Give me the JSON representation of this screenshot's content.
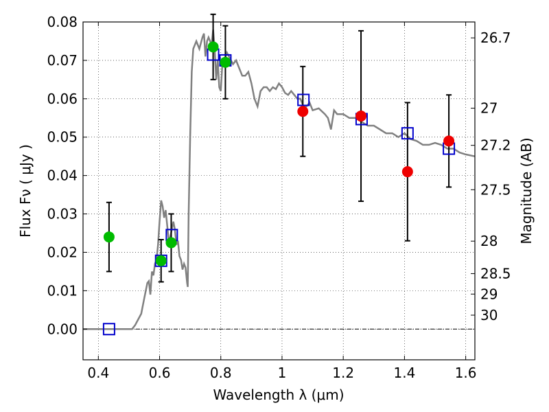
{
  "chart_data": {
    "type": "scatter",
    "xlabel": "Wavelength  λ (μm)",
    "ylabel": "Flux  Fν  ( μJy )",
    "y2label": "Magnitude (AB)",
    "xlim": [
      0.35,
      1.63
    ],
    "ylim": [
      -0.008,
      0.08
    ],
    "grid": true,
    "xticks": [
      {
        "v": 0.4,
        "label": "0.4"
      },
      {
        "v": 0.6,
        "label": "0.6"
      },
      {
        "v": 0.8,
        "label": "0.8"
      },
      {
        "v": 1.0,
        "label": "1"
      },
      {
        "v": 1.2,
        "label": "1.2"
      },
      {
        "v": 1.4,
        "label": "1.4"
      },
      {
        "v": 1.6,
        "label": "1.6"
      }
    ],
    "yticks": [
      {
        "v": 0.0,
        "label": "0.00"
      },
      {
        "v": 0.01,
        "label": "0.01"
      },
      {
        "v": 0.02,
        "label": "0.02"
      },
      {
        "v": 0.03,
        "label": "0.03"
      },
      {
        "v": 0.04,
        "label": "0.04"
      },
      {
        "v": 0.05,
        "label": "0.05"
      },
      {
        "v": 0.06,
        "label": "0.06"
      },
      {
        "v": 0.07,
        "label": "0.07"
      },
      {
        "v": 0.08,
        "label": "0.08"
      }
    ],
    "magticks": [
      {
        "v": 26.7,
        "label": "26.7"
      },
      {
        "v": 27,
        "label": "27"
      },
      {
        "v": 27.2,
        "label": "27.2"
      },
      {
        "v": 27.5,
        "label": "27.5"
      },
      {
        "v": 28,
        "label": "28"
      },
      {
        "v": 28.5,
        "label": "28.5"
      },
      {
        "v": 29,
        "label": "29"
      },
      {
        "v": 30,
        "label": "30"
      }
    ],
    "model_spectrum": {
      "color": "#808080",
      "points": [
        [
          0.35,
          0
        ],
        [
          0.51,
          0
        ],
        [
          0.52,
          0.001
        ],
        [
          0.54,
          0.004
        ],
        [
          0.55,
          0.008
        ],
        [
          0.56,
          0.012
        ],
        [
          0.565,
          0.0125
        ],
        [
          0.57,
          0.009
        ],
        [
          0.575,
          0.015
        ],
        [
          0.58,
          0.014
        ],
        [
          0.585,
          0.017
        ],
        [
          0.59,
          0.018
        ],
        [
          0.595,
          0.022
        ],
        [
          0.6,
          0.028
        ],
        [
          0.605,
          0.0335
        ],
        [
          0.61,
          0.032
        ],
        [
          0.615,
          0.029
        ],
        [
          0.62,
          0.031
        ],
        [
          0.63,
          0.023
        ],
        [
          0.635,
          0.024
        ],
        [
          0.64,
          0.026
        ],
        [
          0.645,
          0.028
        ],
        [
          0.65,
          0.026
        ],
        [
          0.655,
          0.022
        ],
        [
          0.66,
          0.023
        ],
        [
          0.665,
          0.019
        ],
        [
          0.67,
          0.018
        ],
        [
          0.675,
          0.0155
        ],
        [
          0.68,
          0.017
        ],
        [
          0.685,
          0.016
        ],
        [
          0.69,
          0.012
        ],
        [
          0.692,
          0.011
        ],
        [
          0.695,
          0.03
        ],
        [
          0.7,
          0.05
        ],
        [
          0.705,
          0.067
        ],
        [
          0.71,
          0.073
        ],
        [
          0.72,
          0.075
        ],
        [
          0.73,
          0.073
        ],
        [
          0.74,
          0.076
        ],
        [
          0.745,
          0.077
        ],
        [
          0.75,
          0.071
        ],
        [
          0.755,
          0.075
        ],
        [
          0.76,
          0.076
        ],
        [
          0.77,
          0.074
        ],
        [
          0.775,
          0.078
        ],
        [
          0.78,
          0.073
        ],
        [
          0.785,
          0.065
        ],
        [
          0.79,
          0.07
        ],
        [
          0.795,
          0.063
        ],
        [
          0.8,
          0.062
        ],
        [
          0.805,
          0.069
        ],
        [
          0.81,
          0.0695
        ],
        [
          0.82,
          0.072
        ],
        [
          0.83,
          0.0705
        ],
        [
          0.84,
          0.069
        ],
        [
          0.85,
          0.07
        ],
        [
          0.86,
          0.068
        ],
        [
          0.87,
          0.066
        ],
        [
          0.88,
          0.066
        ],
        [
          0.89,
          0.067
        ],
        [
          0.9,
          0.064
        ],
        [
          0.91,
          0.06
        ],
        [
          0.92,
          0.058
        ],
        [
          0.93,
          0.062
        ],
        [
          0.94,
          0.063
        ],
        [
          0.95,
          0.063
        ],
        [
          0.96,
          0.062
        ],
        [
          0.97,
          0.063
        ],
        [
          0.98,
          0.0625
        ],
        [
          0.99,
          0.064
        ],
        [
          1.0,
          0.063
        ],
        [
          1.01,
          0.0615
        ],
        [
          1.02,
          0.061
        ],
        [
          1.03,
          0.062
        ],
        [
          1.04,
          0.061
        ],
        [
          1.05,
          0.06
        ],
        [
          1.06,
          0.06
        ],
        [
          1.07,
          0.058
        ],
        [
          1.08,
          0.058
        ],
        [
          1.09,
          0.059
        ],
        [
          1.1,
          0.057
        ],
        [
          1.12,
          0.0575
        ],
        [
          1.14,
          0.056
        ],
        [
          1.15,
          0.055
        ],
        [
          1.16,
          0.052
        ],
        [
          1.17,
          0.057
        ],
        [
          1.18,
          0.056
        ],
        [
          1.2,
          0.056
        ],
        [
          1.22,
          0.055
        ],
        [
          1.24,
          0.055
        ],
        [
          1.26,
          0.054
        ],
        [
          1.28,
          0.053
        ],
        [
          1.3,
          0.053
        ],
        [
          1.32,
          0.052
        ],
        [
          1.34,
          0.051
        ],
        [
          1.36,
          0.051
        ],
        [
          1.38,
          0.05
        ],
        [
          1.4,
          0.051
        ],
        [
          1.42,
          0.0495
        ],
        [
          1.44,
          0.049
        ],
        [
          1.46,
          0.048
        ],
        [
          1.48,
          0.048
        ],
        [
          1.5,
          0.0485
        ],
        [
          1.52,
          0.048
        ],
        [
          1.54,
          0.047
        ],
        [
          1.56,
          0.047
        ],
        [
          1.58,
          0.046
        ],
        [
          1.6,
          0.0455
        ],
        [
          1.63,
          0.045
        ]
      ]
    },
    "model_squares": {
      "color": "#0000cc",
      "points": [
        [
          0.435,
          0.0
        ],
        [
          0.605,
          0.0178
        ],
        [
          0.64,
          0.0245
        ],
        [
          0.775,
          0.0715
        ],
        [
          0.815,
          0.07
        ],
        [
          1.07,
          0.0597
        ],
        [
          1.26,
          0.0547
        ],
        [
          1.41,
          0.051
        ],
        [
          1.545,
          0.047
        ]
      ]
    },
    "observed": [
      {
        "x": 0.435,
        "y": 0.024,
        "err": 0.009,
        "color": "#00bb00"
      },
      {
        "x": 0.605,
        "y": 0.0178,
        "err": 0.0055,
        "color": "#00bb00"
      },
      {
        "x": 0.638,
        "y": 0.0225,
        "err": 0.0075,
        "color": "#00bb00"
      },
      {
        "x": 0.775,
        "y": 0.0735,
        "err": 0.0085,
        "color": "#00bb00"
      },
      {
        "x": 0.815,
        "y": 0.0695,
        "err": 0.0095,
        "color": "#00bb00"
      },
      {
        "x": 1.068,
        "y": 0.0567,
        "err": 0.0117,
        "color": "#ee0000"
      },
      {
        "x": 1.258,
        "y": 0.0555,
        "err": 0.0222,
        "color": "#ee0000"
      },
      {
        "x": 1.41,
        "y": 0.041,
        "err": 0.018,
        "color": "#ee0000"
      },
      {
        "x": 1.545,
        "y": 0.049,
        "err": 0.012,
        "color": "#ee0000"
      }
    ]
  }
}
